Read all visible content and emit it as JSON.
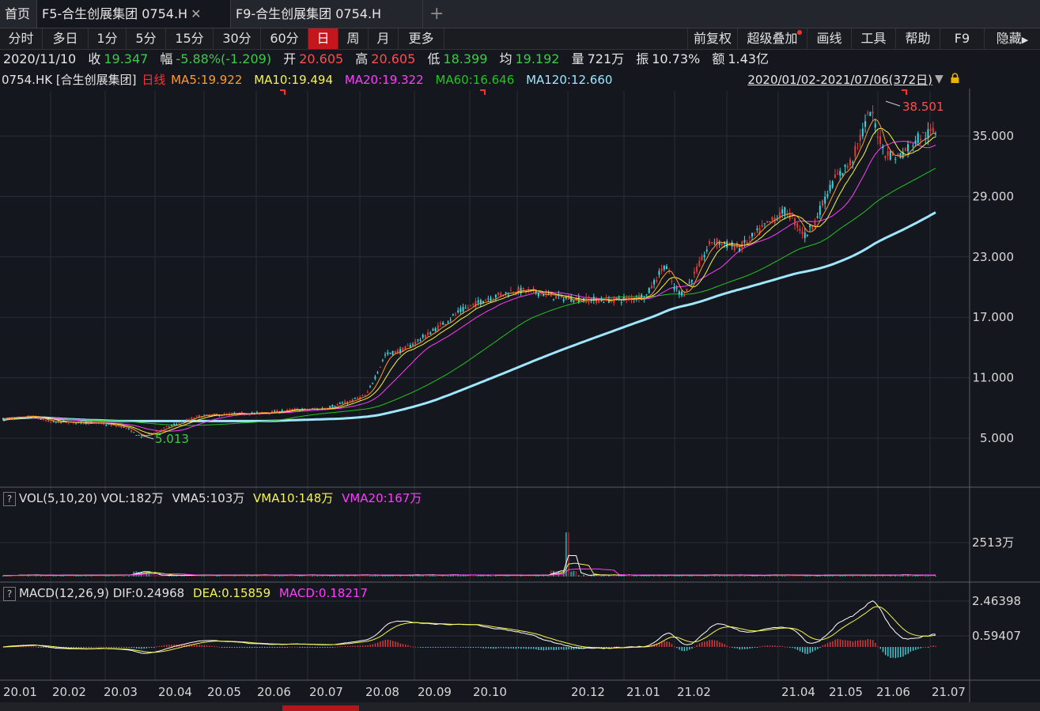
{
  "tabs": [
    {
      "label": "首页",
      "active": false
    },
    {
      "label": "F5-合生创展集团 0754.H",
      "active": true
    },
    {
      "label": "F9-合生创展集团 0754.H",
      "active": false
    }
  ],
  "period_buttons": [
    {
      "label": "分时",
      "selected": false
    },
    {
      "label": "多日",
      "selected": false
    },
    {
      "label": "1分",
      "selected": false
    },
    {
      "label": "5分",
      "selected": false
    },
    {
      "label": "15分",
      "selected": false
    },
    {
      "label": "30分",
      "selected": false
    },
    {
      "label": "60分",
      "selected": false
    },
    {
      "label": "日",
      "selected": true
    },
    {
      "label": "周",
      "selected": false
    },
    {
      "label": "月",
      "selected": false
    },
    {
      "label": "更多",
      "selected": false
    }
  ],
  "right_buttons": [
    {
      "label": "前复权"
    },
    {
      "label": "超级叠加"
    },
    {
      "label": "画线"
    },
    {
      "label": "工具"
    },
    {
      "label": "帮助"
    },
    {
      "label": "F9"
    },
    {
      "label": "隐藏"
    }
  ],
  "info": {
    "date": "2020/11/10",
    "close_label": "收",
    "close": "19.347",
    "change_label": "幅",
    "change": "-5.88%(-1.209)",
    "open_label": "开",
    "open": "20.605",
    "high_label": "高",
    "high": "20.605",
    "low_label": "低",
    "low": "18.399",
    "avg_label": "均",
    "avg": "19.192",
    "volume_label": "量",
    "volume": "721万",
    "amplitude_label": "振",
    "amplitude": "10.73%",
    "amount_label": "额",
    "amount": "1.43亿"
  },
  "legend": {
    "symbol": "0754.HK [合生创展集团]",
    "period": "日线",
    "ma5": "MA5:19.922",
    "ma10": "MA10:19.494",
    "ma20": "MA20:19.322",
    "ma60": "MA60:16.646",
    "ma120": "MA120:12.660",
    "range": "2020/01/02-2021/07/06(372日)"
  },
  "vol_legend": {
    "name": "VOL(5,10,20)",
    "vol": "VOL:182万",
    "vma5": "VMA5:103万",
    "vma10": "VMA10:148万",
    "vma20": "VMA20:167万"
  },
  "macd_legend": {
    "name": "MACD(12,26,9)",
    "dif": "DIF:0.24968",
    "dea": "DEA:0.15859",
    "macd": "MACD:0.18217"
  },
  "colors": {
    "up": "#e23b3b",
    "down": "#3cd6dc",
    "ma5": "#ff9a2e",
    "ma10": "#f5f54a",
    "ma20": "#ff3cff",
    "ma60": "#22c422",
    "ma120": "#9fe6ff",
    "grid": "#2a2d36"
  },
  "chart_data": {
    "type": "line",
    "price_ticks": [
      "35.000",
      "29.000",
      "23.000",
      "17.000",
      "11.000",
      "5.000"
    ],
    "price_tick_values": [
      35,
      29,
      23,
      17,
      11,
      5
    ],
    "high_label": "38.501",
    "low_label": "5.013",
    "vol_tick": "2513万",
    "macd_ticks": [
      "2.46398",
      "0.59407"
    ],
    "x_labels": [
      "20.01",
      "20.02",
      "20.03",
      "20.04",
      "20.05",
      "20.06",
      "20.07",
      "20.08",
      "20.09",
      "20.10",
      "20.12",
      "21.01",
      "21.02",
      "21.04",
      "21.05",
      "21.06",
      "21.07"
    ],
    "anchors": [
      [
        0,
        6.9
      ],
      [
        0.02,
        7.0
      ],
      [
        0.03,
        7.2
      ],
      [
        0.05,
        6.6
      ],
      [
        0.1,
        6.5
      ],
      [
        0.13,
        6.1
      ],
      [
        0.148,
        5.1
      ],
      [
        0.17,
        5.9
      ],
      [
        0.21,
        7.2
      ],
      [
        0.25,
        7.4
      ],
      [
        0.28,
        7.5
      ],
      [
        0.31,
        7.8
      ],
      [
        0.34,
        7.9
      ],
      [
        0.37,
        8.6
      ],
      [
        0.39,
        9.3
      ],
      [
        0.41,
        13.3
      ],
      [
        0.43,
        13.8
      ],
      [
        0.46,
        15.6
      ],
      [
        0.49,
        17.6
      ],
      [
        0.52,
        18.9
      ],
      [
        0.55,
        19.7
      ],
      [
        0.57,
        19.5
      ],
      [
        0.6,
        18.9
      ],
      [
        0.64,
        18.7
      ],
      [
        0.67,
        18.8
      ],
      [
        0.69,
        19.2
      ],
      [
        0.71,
        22.3
      ],
      [
        0.72,
        19.8
      ],
      [
        0.73,
        19.3
      ],
      [
        0.76,
        24.6
      ],
      [
        0.79,
        23.9
      ],
      [
        0.82,
        26.3
      ],
      [
        0.84,
        27.6
      ],
      [
        0.86,
        25.1
      ],
      [
        0.87,
        26.4
      ],
      [
        0.89,
        30.5
      ],
      [
        0.91,
        32.5
      ],
      [
        0.93,
        37.5
      ],
      [
        0.945,
        33.4
      ],
      [
        0.96,
        32.9
      ],
      [
        0.98,
        34.8
      ],
      [
        1.0,
        35.5
      ]
    ],
    "vol_spike": [
      0.605,
      2513
    ]
  }
}
